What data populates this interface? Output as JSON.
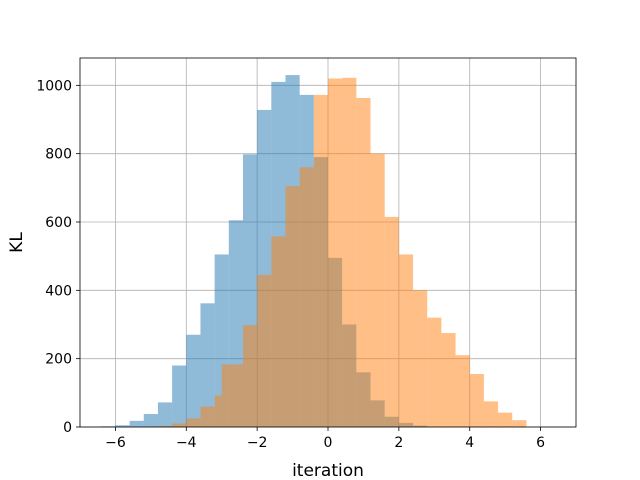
{
  "chart_data": {
    "type": "bar",
    "xlabel": "iteration",
    "ylabel": "KL",
    "xlim": [
      -7.0,
      7.0
    ],
    "ylim": [
      0,
      1080
    ],
    "grid": true,
    "xticks": [
      -6,
      -4,
      -2,
      0,
      2,
      4,
      6
    ],
    "xtick_labels": [
      "−6",
      "−4",
      "−2",
      "0",
      "2",
      "4",
      "6"
    ],
    "yticks": [
      0,
      200,
      400,
      600,
      800,
      1000
    ],
    "ytick_labels": [
      "0",
      "200",
      "400",
      "600",
      "800",
      "1000"
    ],
    "series": [
      {
        "color": "#1f77b4",
        "opacity": 0.5,
        "bin_edges": [
          -6.4,
          -6.0,
          -5.6,
          -5.2,
          -4.8,
          -4.4,
          -4.0,
          -3.6,
          -3.2,
          -2.8,
          -2.4,
          -2.0,
          -1.6,
          -1.2,
          -0.8,
          -0.4,
          0.0,
          0.4,
          0.8,
          1.2,
          1.6,
          2.0,
          2.4,
          2.8
        ],
        "values": [
          2,
          5,
          18,
          38,
          72,
          180,
          270,
          362,
          505,
          605,
          798,
          928,
          1010,
          1030,
          972,
          790,
          495,
          300,
          160,
          78,
          30,
          12,
          4
        ]
      },
      {
        "color": "#ff7f0e",
        "opacity": 0.5,
        "bin_edges": [
          -4.8,
          -4.4,
          -4.0,
          -3.6,
          -3.2,
          -3.0,
          -2.4,
          -2.0,
          -1.6,
          -1.2,
          -0.8,
          -0.4,
          0.0,
          0.4,
          0.8,
          1.2,
          1.6,
          2.0,
          2.4,
          2.8,
          3.2,
          3.6,
          4.0,
          4.4,
          4.8,
          5.2,
          5.6
        ],
        "values": [
          3,
          10,
          25,
          60,
          92,
          183,
          298,
          445,
          558,
          705,
          760,
          972,
          1020,
          1022,
          963,
          800,
          615,
          505,
          400,
          320,
          275,
          210,
          155,
          75,
          42,
          20
        ]
      }
    ]
  }
}
